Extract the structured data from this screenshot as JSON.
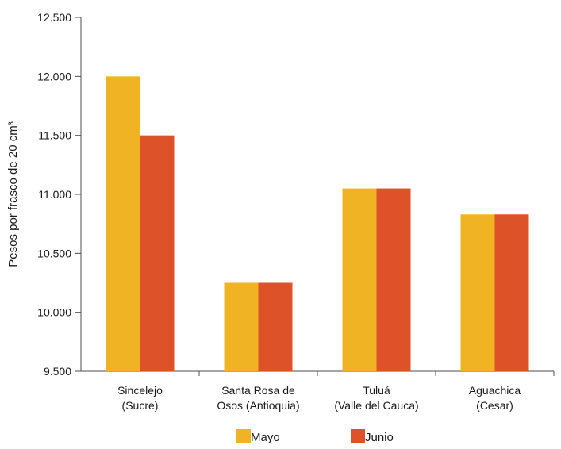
{
  "chart_data": {
    "type": "bar",
    "categories": [
      [
        "Sincelejo",
        "(Sucre)"
      ],
      [
        "Santa Rosa de",
        "Osos (Antioquia)"
      ],
      [
        "Tuluá",
        "(Valle del Cauca)"
      ],
      [
        "Aguachica",
        "(Cesar)"
      ]
    ],
    "series": [
      {
        "name": "Mayo",
        "color": "#F0B323",
        "values": [
          12000,
          10250,
          11050,
          10830
        ]
      },
      {
        "name": "Junio",
        "color": "#DD5228",
        "values": [
          11500,
          10250,
          11050,
          10830
        ]
      }
    ],
    "ylabel": "Pesos por frasco de 20 cm³",
    "ylim": [
      9500,
      12500
    ],
    "yticks": [
      9500,
      10000,
      10500,
      11000,
      11500,
      12000,
      12500
    ],
    "ytick_labels": [
      "9.500",
      "10.000",
      "10.500",
      "11.000",
      "11.500",
      "12.000",
      "12.500"
    ],
    "grid": false,
    "legend_position": "bottom"
  }
}
